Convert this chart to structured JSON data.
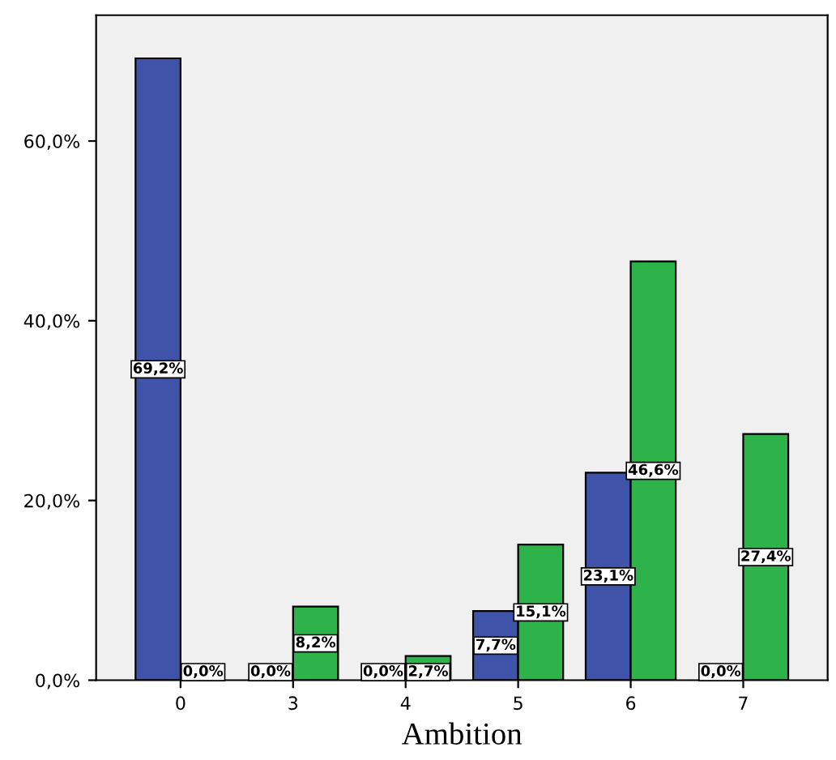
{
  "chart_data": {
    "type": "bar",
    "xlabel": "Ambition",
    "categories": [
      "0",
      "3",
      "4",
      "5",
      "6",
      "7"
    ],
    "series": [
      {
        "color": "#3f53a8",
        "values": [
          69.2,
          0,
          0,
          7.7,
          23.1,
          0
        ],
        "value_labels": [
          "69,2%",
          "0,0%",
          "0,0%",
          "7,7%",
          "23,1%",
          "0,0%"
        ]
      },
      {
        "color": "#2db34a",
        "values": [
          0,
          8.2,
          2.7,
          15.1,
          46.6,
          27.4
        ],
        "value_labels": [
          "0,0%",
          "8,2%",
          "2,7%",
          "15,1%",
          "46,6%",
          "27,4%"
        ]
      }
    ],
    "ylim": [
      0,
      74
    ],
    "yticks": [
      {
        "value": 0,
        "label": "0,0%"
      },
      {
        "value": 20,
        "label": "20,0%"
      },
      {
        "value": 40,
        "label": "40,0%"
      },
      {
        "value": 60,
        "label": "60,0%"
      }
    ],
    "grid": false,
    "legend": false
  }
}
